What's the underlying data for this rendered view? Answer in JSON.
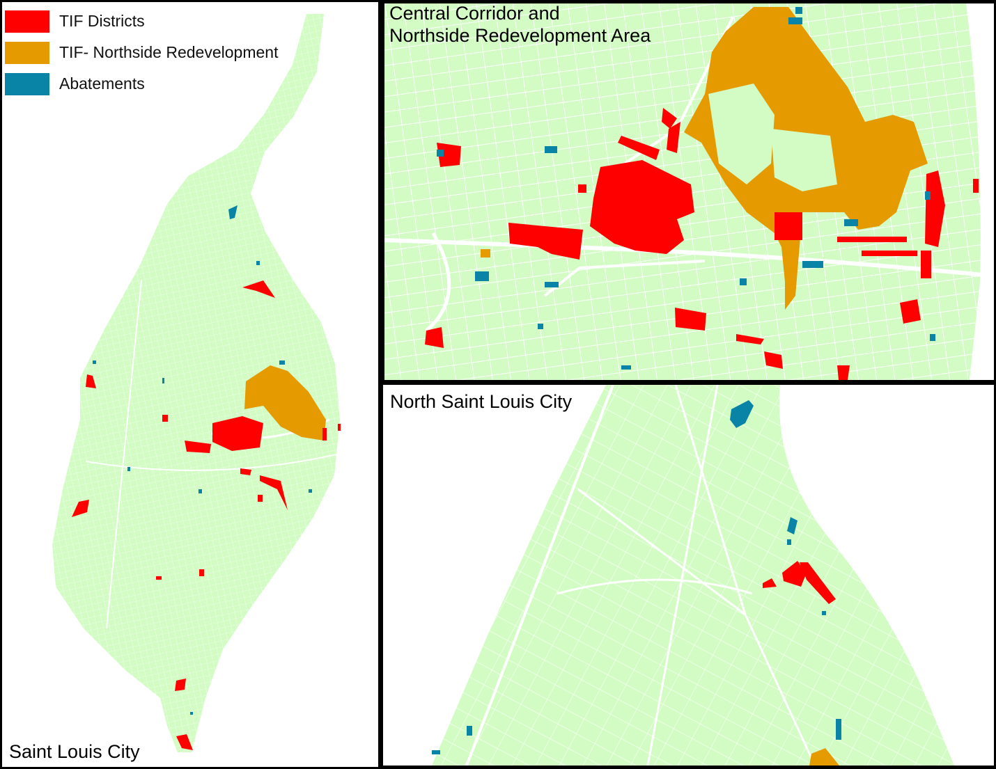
{
  "legend": {
    "items": [
      {
        "label": "TIF Districts",
        "color": "#ff0000"
      },
      {
        "label": "TIF- Northside Redevelopment",
        "color": "#e59a00"
      },
      {
        "label": "Abatements",
        "color": "#0a84a6"
      }
    ]
  },
  "panels": {
    "left": {
      "title": "Saint Louis City"
    },
    "top_right": {
      "title_line1": "Central Corridor and",
      "title_line2": "Northside Redevelopment Area"
    },
    "bottom_right": {
      "title": "North Saint Louis City"
    }
  },
  "colors": {
    "land": "#d2fcc4",
    "street": "#ffffff",
    "border": "#000000"
  }
}
